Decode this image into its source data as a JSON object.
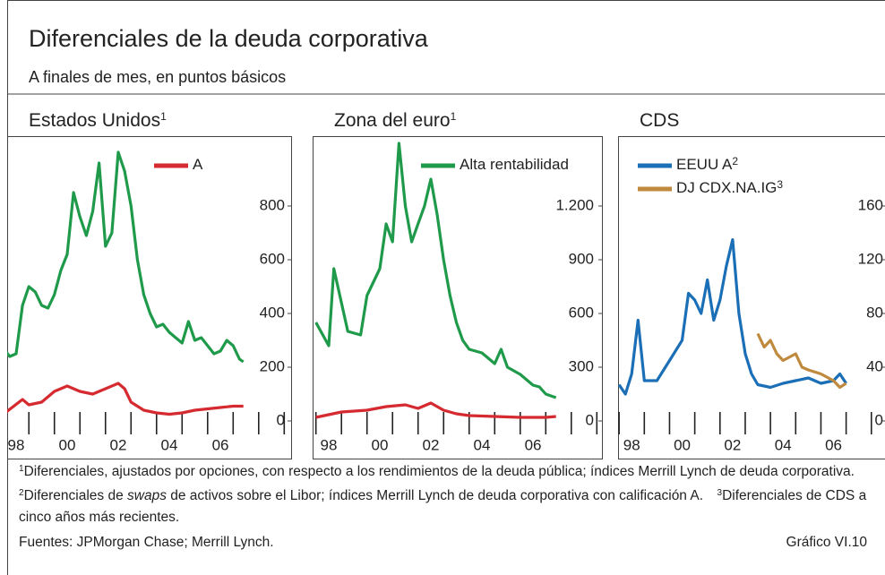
{
  "title": "Diferenciales de la deuda corporativa",
  "subtitle": "A finales de mes, en puntos básicos",
  "chart_data": [
    {
      "type": "line",
      "title": "Estados Unidos",
      "title_note": "1",
      "xlim": [
        1998.15,
        2009.27
      ],
      "ylim": [
        -50,
        1060
      ],
      "yticks": [
        0,
        200,
        400,
        600,
        800
      ],
      "xticks": [
        {
          "value": 1998,
          "label": "98"
        },
        {
          "value": 2000,
          "label": "00"
        },
        {
          "value": 2002,
          "label": "02"
        },
        {
          "value": 2004,
          "label": "04"
        },
        {
          "value": 2006,
          "label": "06"
        },
        {
          "value": 2008,
          "label": ""
        }
      ],
      "series": [
        {
          "color": "#1f9a4a",
          "x": [
            1998.0,
            1998.25,
            1998.5,
            1998.75,
            1999.0,
            1999.25,
            1999.5,
            1999.75,
            2000.0,
            2000.25,
            2000.5,
            2000.75,
            2001.0,
            2001.25,
            2001.5,
            2001.75,
            2002.0,
            2002.25,
            2002.5,
            2002.75,
            2003.0,
            2003.25,
            2003.5,
            2003.75,
            2004.0,
            2004.25,
            2004.5,
            2004.75,
            2005.0,
            2005.25,
            2005.5,
            2005.75,
            2006.0,
            2006.25,
            2006.5,
            2006.75,
            2007.0,
            2007.25,
            2007.4
          ],
          "values": [
            270,
            240,
            250,
            430,
            500,
            480,
            430,
            420,
            470,
            560,
            620,
            850,
            760,
            690,
            780,
            960,
            650,
            700,
            1000,
            930,
            800,
            600,
            470,
            400,
            350,
            360,
            330,
            310,
            290,
            370,
            300,
            310,
            280,
            250,
            260,
            300,
            280,
            230,
            220
          ]
        },
        {
          "name": "A",
          "color": "#d42a30",
          "x": [
            1998.0,
            1998.75,
            1999.0,
            1999.5,
            2000.0,
            2000.5,
            2001.0,
            2001.5,
            2002.0,
            2002.5,
            2002.75,
            2003.0,
            2003.5,
            2004.0,
            2004.5,
            2005.0,
            2005.5,
            2006.0,
            2006.5,
            2007.0,
            2007.4
          ],
          "values": [
            25,
            80,
            60,
            70,
            110,
            130,
            110,
            100,
            120,
            140,
            120,
            70,
            40,
            30,
            25,
            30,
            40,
            45,
            50,
            55,
            55
          ]
        }
      ]
    },
    {
      "type": "line",
      "title": "Zona del euro",
      "title_note": "1",
      "xlim": [
        1997.87,
        2009.2
      ],
      "ylim": [
        -75,
        1590
      ],
      "yticks": [
        0,
        300,
        600,
        900,
        {
          "value": 1200,
          "label": "1.200"
        }
      ],
      "xticks": [
        {
          "value": 1998,
          "label": "98"
        },
        {
          "value": 2000,
          "label": "00"
        },
        {
          "value": 2002,
          "label": "02"
        },
        {
          "value": 2004,
          "label": "04"
        },
        {
          "value": 2006,
          "label": "06"
        },
        {
          "value": 2008,
          "label": ""
        }
      ],
      "series": [
        {
          "name": "Alta rentabilidad",
          "color": "#1f9a4a",
          "x": [
            1998.0,
            1998.5,
            1998.7,
            1999.25,
            1999.75,
            2000.0,
            2000.5,
            2000.75,
            2001.0,
            2001.25,
            2001.5,
            2001.75,
            2002.0,
            2002.25,
            2002.5,
            2002.75,
            2003.0,
            2003.25,
            2003.5,
            2003.75,
            2004.0,
            2004.5,
            2005.0,
            2005.25,
            2005.5,
            2006.0,
            2006.5,
            2006.75,
            2007.0,
            2007.4
          ],
          "values": [
            550,
            420,
            850,
            500,
            480,
            700,
            850,
            1100,
            1000,
            1550,
            1200,
            1000,
            1100,
            1200,
            1350,
            1150,
            900,
            700,
            550,
            450,
            400,
            380,
            320,
            400,
            300,
            260,
            200,
            190,
            150,
            130
          ]
        },
        {
          "color": "#d42a30",
          "x": [
            1998.0,
            1999.0,
            2000.0,
            2000.75,
            2001.5,
            2002.0,
            2002.5,
            2003.0,
            2003.5,
            2004.0,
            2005.0,
            2006.0,
            2007.0,
            2007.4
          ],
          "values": [
            20,
            50,
            60,
            80,
            90,
            70,
            100,
            60,
            40,
            30,
            25,
            20,
            20,
            25
          ]
        }
      ]
    },
    {
      "type": "line",
      "title": "CDS",
      "xlim": [
        1997.96,
        2008.54
      ],
      "ylim": [
        -10,
        212
      ],
      "yticks": [
        0,
        40,
        80,
        120,
        160
      ],
      "xticks": [
        {
          "value": 1998,
          "label": "98"
        },
        {
          "value": 2000,
          "label": "00"
        },
        {
          "value": 2002,
          "label": "02"
        },
        {
          "value": 2004,
          "label": "04"
        },
        {
          "value": 2006,
          "label": "06"
        },
        {
          "value": 2008,
          "label": ""
        }
      ],
      "series": [
        {
          "name": "EEUU A",
          "note": "2",
          "color": "#1b6fb6",
          "x": [
            1998.0,
            1998.25,
            1998.5,
            1998.75,
            1999.0,
            1999.5,
            2000.0,
            2000.5,
            2000.75,
            2001.0,
            2001.25,
            2001.5,
            2001.75,
            2002.0,
            2002.25,
            2002.5,
            2002.75,
            2003.0,
            2003.25,
            2003.5,
            2004.0,
            2004.5,
            2005.0,
            2005.5,
            2006.0,
            2006.5,
            2006.75,
            2007.0
          ],
          "values": [
            27,
            20,
            35,
            75,
            30,
            30,
            45,
            60,
            95,
            90,
            80,
            105,
            75,
            90,
            115,
            135,
            80,
            50,
            35,
            27,
            25,
            28,
            30,
            32,
            28,
            30,
            35,
            28
          ]
        },
        {
          "name": "DJ CDX.NA.IG",
          "note": "3",
          "color": "#c08a3e",
          "x": [
            2003.5,
            2003.75,
            2004.0,
            2004.25,
            2004.5,
            2005.0,
            2005.25,
            2005.5,
            2006.0,
            2006.5,
            2006.75,
            2007.0
          ],
          "values": [
            65,
            55,
            60,
            50,
            45,
            50,
            40,
            38,
            35,
            30,
            25,
            28
          ]
        }
      ]
    }
  ],
  "notes": [
    {
      "marker": "1",
      "text": "Diferenciales, ajustados por opciones, con respecto a los rendimientos de la deuda pública; índices Merrill Lynch de deuda corporativa."
    },
    {
      "marker": "2",
      "before": "Diferenciales de ",
      "italic": "swaps",
      "after": " de activos sobre el Libor; índices Merrill Lynch de deuda corporativa con calificación A."
    },
    {
      "marker": "3",
      "text": "Diferenciales de CDS a cinco años más recientes."
    }
  ],
  "source": "Fuentes: JPMorgan Chase; Merrill Lynch.",
  "figure_label": "Gráfico VI.10"
}
